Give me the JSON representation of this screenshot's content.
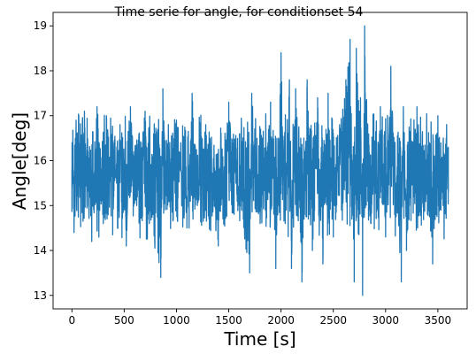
{
  "chart_data": {
    "type": "line",
    "title": "Time serie for angle, for conditionset 54",
    "xlabel": "Time [s]",
    "ylabel": "Angle[deg]",
    "xlim": [
      -180,
      3780
    ],
    "ylim": [
      12.7,
      19.3
    ],
    "x_ticks": [
      0,
      500,
      1000,
      1500,
      2000,
      2500,
      3000,
      3500
    ],
    "y_ticks": [
      13,
      14,
      15,
      16,
      17,
      18,
      19
    ],
    "x_tick_labels": [
      "0",
      "500",
      "1000",
      "1500",
      "2000",
      "2500",
      "3000",
      "3500"
    ],
    "y_tick_labels": [
      "13",
      "14",
      "15",
      "16",
      "17",
      "18",
      "19"
    ],
    "grid": false,
    "legend": "none",
    "series": [
      {
        "color": "#1f77b4",
        "x": [
          0,
          1,
          10,
          20,
          40,
          60,
          120,
          190,
          240,
          300,
          330,
          400,
          460,
          520,
          560,
          620,
          700,
          740,
          850,
          870,
          900,
          1000,
          1100,
          1150,
          1200,
          1280,
          1400,
          1500,
          1600,
          1700,
          1720,
          1800,
          1900,
          1950,
          2000,
          2040,
          2080,
          2100,
          2140,
          2200,
          2250,
          2300,
          2350,
          2400,
          2450,
          2500,
          2560,
          2620,
          2660,
          2700,
          2720,
          2760,
          2780,
          2800,
          2860,
          2950,
          3000,
          3050,
          3100,
          3150,
          3170,
          3200,
          3300,
          3400,
          3450,
          3500,
          3550,
          3580,
          3600
        ],
        "y": [
          15.8,
          15.4,
          16.3,
          14.4,
          16.9,
          15.1,
          17.1,
          14.2,
          17.2,
          14.6,
          17.0,
          15.2,
          16.8,
          14.1,
          17.2,
          15.0,
          17.1,
          14.6,
          13.4,
          17.6,
          15.4,
          16.9,
          14.5,
          17.5,
          15.0,
          16.8,
          14.1,
          17.3,
          15.0,
          13.5,
          17.5,
          14.6,
          17.3,
          13.6,
          18.4,
          14.6,
          17.8,
          13.6,
          17.6,
          13.3,
          17.8,
          14.0,
          17.4,
          13.7,
          17.5,
          14.3,
          16.8,
          17.8,
          18.7,
          13.3,
          18.5,
          17.4,
          13.0,
          19.0,
          14.6,
          17.2,
          14.3,
          18.1,
          15.0,
          13.3,
          17.2,
          14.0,
          17.2,
          15.1,
          13.7,
          17.0,
          15.0,
          16.5,
          15.3
        ]
      }
    ]
  }
}
